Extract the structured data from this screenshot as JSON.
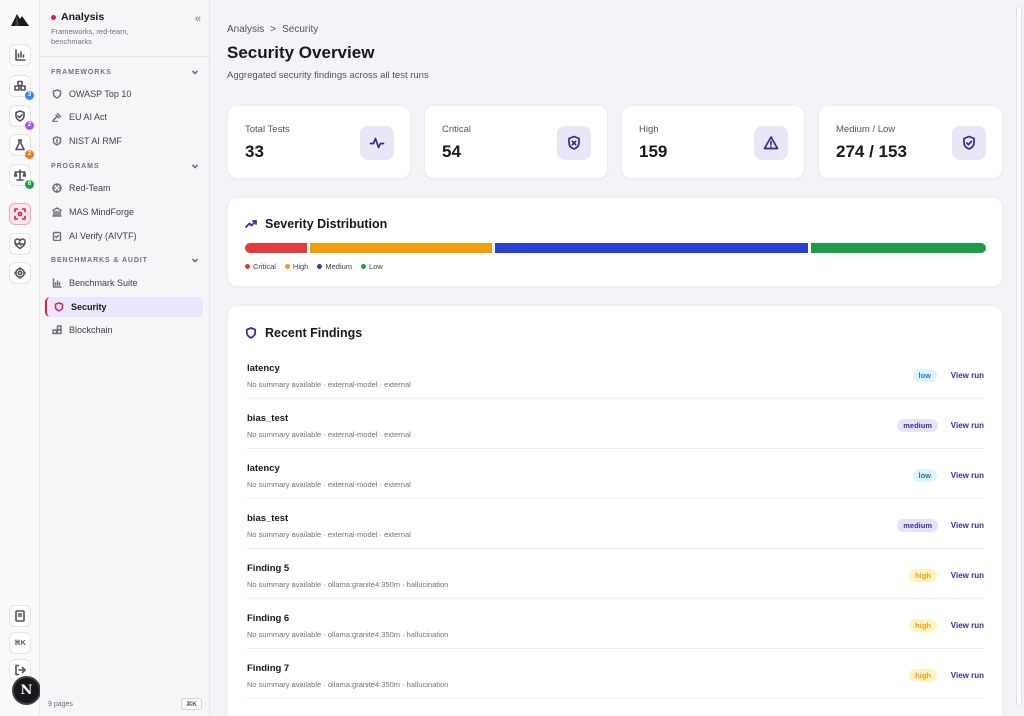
{
  "rail": {
    "badges": {
      "experiments": "3",
      "guard": "2",
      "lab": "2",
      "compliance": "6"
    },
    "avatar": "N",
    "kbd": "⌘K"
  },
  "sidebar": {
    "title": "Analysis",
    "subtitle": "Frameworks, red-team, benchmarks",
    "collapse_icon": "«",
    "sections": {
      "frameworks": "FRAMEWORKS",
      "programs": "PROGRAMS",
      "benchmarks": "BENCHMARKS & AUDIT"
    },
    "items": {
      "owasp": "OWASP Top 10",
      "euai": "EU AI Act",
      "nist": "NIST AI RMF",
      "redteam": "Red-Team",
      "mas": "MAS MindForge",
      "aiverify": "AI Verify (AIVTF)",
      "bench": "Benchmark Suite",
      "security": "Security",
      "blockchain": "Blockchain"
    },
    "footer": {
      "pages": "9 pages",
      "shortcut": "⌘K"
    }
  },
  "main": {
    "breadcrumb": [
      "Analysis",
      ">",
      "Security"
    ],
    "title": "Security Overview",
    "subtitle": "Aggregated security findings across all test runs",
    "stats": [
      {
        "label": "Total Tests",
        "value": "33",
        "icon": "activity-icon"
      },
      {
        "label": "Critical",
        "value": "54",
        "icon": "shield-x-icon"
      },
      {
        "label": "High",
        "value": "159",
        "icon": "alert-triangle-icon"
      },
      {
        "label": "Medium / Low",
        "value": "274 / 153",
        "icon": "shield-check-icon"
      }
    ],
    "severity": {
      "title": "Severity Distribution",
      "colors": {
        "critical": "#e23b3b",
        "high": "#f09e0c",
        "medium": "#2a3fd1",
        "low": "#1e9a48"
      },
      "segments": [
        {
          "key": "critical",
          "label": "Critical",
          "value": 54
        },
        {
          "key": "high",
          "label": "High",
          "value": 159
        },
        {
          "key": "medium",
          "label": "Medium",
          "value": 274
        },
        {
          "key": "low",
          "label": "Low",
          "value": 153
        }
      ]
    },
    "findings": {
      "title": "Recent Findings",
      "view_label": "View run",
      "rows": [
        {
          "name": "latency",
          "summary": "No summary available · external-model · external",
          "severity": "low"
        },
        {
          "name": "bias_test",
          "summary": "No summary available · external-model · external",
          "severity": "medium"
        },
        {
          "name": "latency",
          "summary": "No summary available · external-model · external",
          "severity": "low"
        },
        {
          "name": "bias_test",
          "summary": "No summary available · external-model · external",
          "severity": "medium"
        },
        {
          "name": "Finding 5",
          "summary": "No summary available · ollama:granite4:350m · hallucination",
          "severity": "high"
        },
        {
          "name": "Finding 6",
          "summary": "No summary available · ollama:granite4:350m · hallucination",
          "severity": "high"
        },
        {
          "name": "Finding 7",
          "summary": "No summary available · ollama:granite4:350m · hallucination",
          "severity": "high"
        }
      ]
    }
  }
}
